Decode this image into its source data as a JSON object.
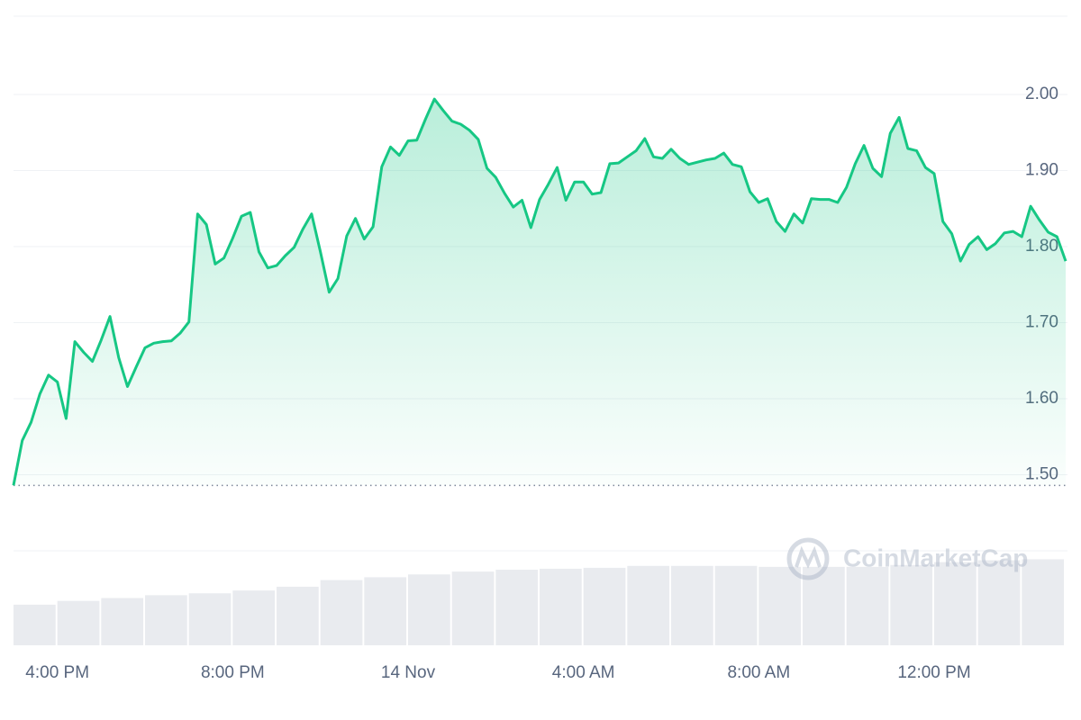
{
  "chart_data": {
    "type": "line",
    "watermark": "CoinMarketCap",
    "x": [
      15,
      15.2,
      15.4,
      15.6,
      15.8,
      16,
      16.2,
      16.4,
      16.6,
      16.8,
      17,
      17.2,
      17.4,
      17.6,
      17.8,
      18,
      18.2,
      18.4,
      18.6,
      18.8,
      19,
      19.2,
      19.4,
      19.6,
      19.8,
      20,
      20.2,
      20.4,
      20.6,
      20.8,
      21,
      21.2,
      21.4,
      21.6,
      21.8,
      22,
      22.2,
      22.4,
      22.6,
      22.8,
      23,
      23.2,
      23.4,
      23.6,
      23.8,
      24,
      24.2,
      24.4,
      24.6,
      24.8,
      25,
      25.2,
      25.4,
      25.6,
      25.8,
      26,
      26.2,
      26.4,
      26.6,
      26.8,
      27,
      27.2,
      27.4,
      27.6,
      27.8,
      28,
      28.2,
      28.4,
      28.6,
      28.8,
      29,
      29.2,
      29.4,
      29.6,
      29.8,
      30,
      30.2,
      30.4,
      30.6,
      30.8,
      31,
      31.2,
      31.4,
      31.6,
      31.8,
      32,
      32.2,
      32.4,
      32.6,
      32.8,
      33,
      33.2,
      33.4,
      33.6,
      33.8,
      34,
      34.2,
      34.4,
      34.6,
      34.8,
      35,
      35.2,
      35.4,
      35.6,
      35.8,
      36,
      36.2,
      36.4,
      36.6,
      36.8,
      37,
      37.2,
      37.4,
      37.6,
      37.8,
      38,
      38.2,
      38.4,
      38.6,
      38.8,
      39
    ],
    "series": [
      {
        "color": "#16c784",
        "values": [
          1.486,
          1.545,
          1.569,
          1.606,
          1.631,
          1.622,
          1.574,
          1.675,
          1.661,
          1.649,
          1.677,
          1.708,
          1.654,
          1.616,
          1.642,
          1.667,
          1.673,
          1.675,
          1.676,
          1.686,
          1.701,
          1.843,
          1.829,
          1.777,
          1.785,
          1.811,
          1.84,
          1.845,
          1.793,
          1.772,
          1.775,
          1.788,
          1.799,
          1.823,
          1.843,
          1.793,
          1.74,
          1.758,
          1.814,
          1.837,
          1.81,
          1.826,
          1.905,
          1.931,
          1.92,
          1.939,
          1.94,
          1.968,
          1.994,
          1.979,
          1.965,
          1.961,
          1.953,
          1.941,
          1.903,
          1.891,
          1.87,
          1.852,
          1.861,
          1.825,
          1.862,
          1.882,
          1.904,
          1.861,
          1.885,
          1.885,
          1.869,
          1.871,
          1.909,
          1.91,
          1.918,
          1.926,
          1.942,
          1.918,
          1.916,
          1.928,
          1.916,
          1.908,
          1.911,
          1.914,
          1.916,
          1.923,
          1.908,
          1.905,
          1.872,
          1.858,
          1.863,
          1.833,
          1.82,
          1.843,
          1.831,
          1.863,
          1.862,
          1.862,
          1.858,
          1.878,
          1.909,
          1.933,
          1.903,
          1.892,
          1.949,
          1.97,
          1.929,
          1.926,
          1.904,
          1.896,
          1.833,
          1.817,
          1.781,
          1.803,
          1.813,
          1.796,
          1.804,
          1.818,
          1.82,
          1.813,
          1.853,
          1.835,
          1.819,
          1.813,
          1.781
        ]
      },
      {
        "type": "bar",
        "axis": "y2",
        "color": "#e9ebef",
        "x": [
          15,
          16,
          17,
          18,
          19,
          20,
          21,
          22,
          23,
          24,
          25,
          26,
          27,
          28,
          29,
          30,
          31,
          32,
          33,
          34,
          35,
          36,
          37,
          38
        ],
        "values": [
          43,
          47,
          50,
          53,
          55,
          58,
          62,
          69,
          72,
          75,
          78,
          80,
          81,
          82,
          84,
          84,
          84,
          83,
          83,
          83,
          85,
          88,
          90,
          91
        ]
      }
    ],
    "xlim": [
      15,
      39
    ],
    "xticks": [
      {
        "value": 16,
        "label": "4:00 PM"
      },
      {
        "value": 20,
        "label": "8:00 PM"
      },
      {
        "value": 24,
        "label": "14 Nov"
      },
      {
        "value": 28,
        "label": "4:00 AM"
      },
      {
        "value": 32,
        "label": "8:00 AM"
      },
      {
        "value": 36,
        "label": "12:00 PM"
      }
    ],
    "ylim": [
      1.4,
      2.1
    ],
    "yticks": [
      {
        "value": 1.5,
        "label": "1.50"
      },
      {
        "value": 1.6,
        "label": "1.60"
      },
      {
        "value": 1.7,
        "label": "1.70"
      },
      {
        "value": 1.8,
        "label": "1.80"
      },
      {
        "value": 1.9,
        "label": "1.90"
      },
      {
        "value": 2.0,
        "label": "2.00"
      }
    ],
    "y2lim": [
      0,
      100
    ],
    "grid": true
  }
}
